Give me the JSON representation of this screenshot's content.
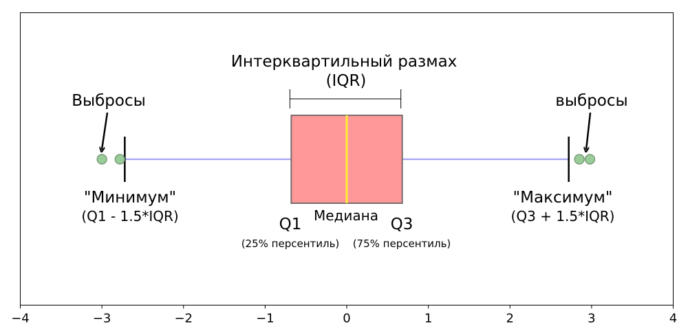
{
  "chart_data": {
    "type": "boxplot",
    "xlim": [
      -4,
      4
    ],
    "grid": false,
    "x_ticks": [
      "−4",
      "−3",
      "−2",
      "−1",
      "0",
      "1",
      "2",
      "3",
      "4"
    ],
    "box": {
      "q1": -0.68,
      "median": 0,
      "q3": 0.68,
      "whisker_low": -2.72,
      "whisker_high": 2.72,
      "outliers": [
        -3.0,
        -2.78,
        2.85,
        2.98
      ]
    },
    "colors": {
      "box_fill": "#ff9999",
      "box_edge": "#7a6a6a",
      "median": "#ffee33",
      "whisker": "#9999ee",
      "outlier_fill": "#99cc99",
      "outlier_edge": "#6f8f6f"
    },
    "annotations": {
      "iqr_title": "Интерквартильный размах",
      "iqr_sub": "(IQR)",
      "outliers_left": "Выбросы",
      "outliers_right": "выбросы",
      "min_title": "\"Минимум\"",
      "min_sub": "(Q1 - 1.5*IQR)",
      "max_title": "\"Максимум\"",
      "max_sub": "(Q3 + 1.5*IQR)",
      "q1": "Q1",
      "q3": "Q3",
      "median": "Медиана",
      "q1_pct": "(25% персентиль)",
      "q3_pct": "(75% персентиль)"
    }
  }
}
